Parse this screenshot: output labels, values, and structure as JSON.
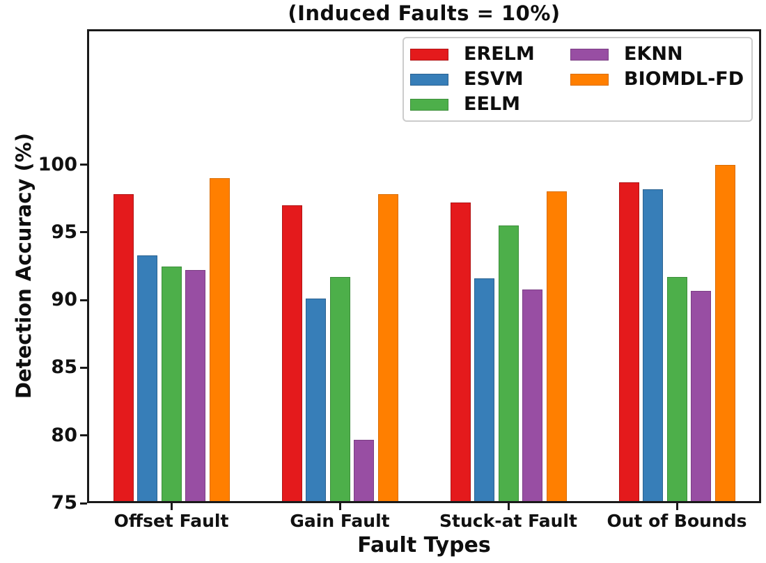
{
  "chart_data": {
    "type": "bar",
    "title": "(Induced Faults = 10%)",
    "xlabel": "Fault Types",
    "ylabel": "Detection Accuracy (%)",
    "categories": [
      "Offset Fault",
      "Gain Fault",
      "Stuck-at Fault",
      "Out of Bounds"
    ],
    "series": [
      {
        "name": "ERELM",
        "color": "#e41a1c",
        "edge_color": "#b01314",
        "values": [
          97.8,
          97.0,
          97.2,
          98.7
        ]
      },
      {
        "name": "ESVM",
        "color": "#377eb8",
        "edge_color": "#2a6291",
        "values": [
          93.3,
          90.1,
          91.6,
          98.2
        ]
      },
      {
        "name": "EELM",
        "color": "#4daf4a",
        "edge_color": "#3c8e3a",
        "values": [
          92.5,
          91.7,
          95.5,
          91.7
        ]
      },
      {
        "name": "EKNN",
        "color": "#984ea3",
        "edge_color": "#7b3e84",
        "values": [
          92.2,
          79.7,
          90.8,
          90.7
        ]
      },
      {
        "name": "BIOMDL-FD",
        "color": "#ff7f00",
        "edge_color": "#d96c00",
        "values": [
          99.0,
          97.8,
          98.0,
          100.0
        ]
      }
    ],
    "ylim": [
      75,
      110
    ],
    "yticks": [
      75,
      80,
      85,
      90,
      95,
      100
    ],
    "grid": false,
    "legend_position": "upper right",
    "legend_columns": 2,
    "axis_color": "#1a1a1a",
    "text_color": "#111111"
  }
}
